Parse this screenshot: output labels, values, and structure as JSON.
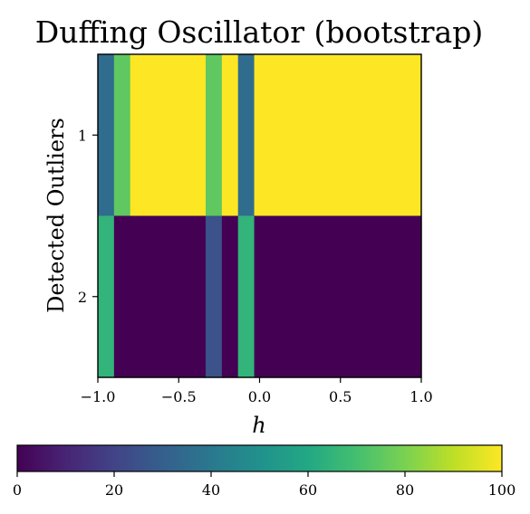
{
  "chart_data": {
    "type": "heatmap",
    "title": "Duffing Oscillator (bootstrap)",
    "xlabel": "h",
    "ylabel": "Detected Outliers",
    "xlim": [
      -1.0,
      1.0
    ],
    "x_ticks": [
      -1.0,
      -0.5,
      0.0,
      0.5,
      1.0
    ],
    "x_tick_labels": [
      "−1.0",
      "−0.5",
      "0.0",
      "0.5",
      "1.0"
    ],
    "rows": [
      "1",
      "2"
    ],
    "x_edges": [
      -1.0,
      -0.9,
      -0.8,
      -0.3333,
      -0.2333,
      -0.1333,
      -0.0333,
      1.0
    ],
    "values": [
      [
        35,
        75,
        100,
        75,
        100,
        35,
        100
      ],
      [
        65,
        0,
        0,
        25,
        0,
        65,
        0
      ]
    ],
    "colorbar": {
      "colormap": "viridis",
      "range": [
        0,
        100
      ],
      "ticks": [
        "0",
        "20",
        "40",
        "60",
        "80",
        "100"
      ],
      "orientation": "horizontal"
    }
  }
}
